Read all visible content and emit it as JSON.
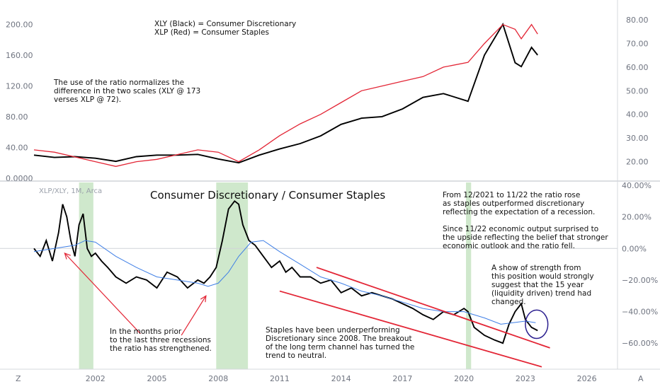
{
  "chart_data": [
    {
      "type": "line",
      "panel": "top",
      "legend": [
        "XLY (Black) = Consumer Discretionary",
        "XLP (Red) = Consumer Staples"
      ],
      "annotation": [
        "The use of the ratio normalizes the",
        "difference in the two scales (XLY @ 173",
        "verses XLP @ 72)."
      ],
      "left_axis": {
        "ticks": [
          "200.00",
          "160.00",
          "120.00",
          "80.00",
          "40.00",
          "0.0000"
        ],
        "ylim": [
          0,
          215
        ]
      },
      "right_axis": {
        "ticks": [
          "80.00",
          "70.00",
          "60.00",
          "50.00",
          "40.00",
          "30.00",
          "20.00"
        ],
        "ylim": [
          13,
          83
        ]
      },
      "series": [
        {
          "name": "XLY (Black) = Consumer Discretionary",
          "axis": "left",
          "color": "#000000",
          "x": [
            1999.0,
            2000.0,
            2001.0,
            2002.0,
            2003.0,
            2004.0,
            2005.0,
            2006.0,
            2007.0,
            2008.0,
            2009.0,
            2010.0,
            2011.0,
            2012.0,
            2013.0,
            2014.0,
            2015.0,
            2016.0,
            2017.0,
            2018.0,
            2019.0,
            2020.2,
            2021.0,
            2021.9,
            2022.5,
            2022.8,
            2023.3,
            2023.6
          ],
          "values": [
            30,
            27,
            28,
            26,
            22,
            28,
            30,
            30,
            31,
            25,
            20,
            30,
            38,
            45,
            55,
            70,
            78,
            80,
            90,
            105,
            110,
            100,
            160,
            200,
            150,
            145,
            170,
            160
          ]
        },
        {
          "name": "XLP (Red) = Consumer Staples",
          "axis": "right",
          "color": "#e32636",
          "x": [
            1999.0,
            2000.0,
            2001.0,
            2002.0,
            2003.0,
            2004.0,
            2005.0,
            2006.0,
            2007.0,
            2008.0,
            2009.0,
            2010.0,
            2011.0,
            2012.0,
            2013.0,
            2014.0,
            2015.0,
            2016.0,
            2017.0,
            2018.0,
            2019.0,
            2020.2,
            2021.0,
            2021.9,
            2022.5,
            2022.8,
            2023.3,
            2023.6
          ],
          "values": [
            25,
            24,
            22,
            20,
            18,
            20,
            21,
            23,
            25,
            24,
            20,
            25,
            31,
            36,
            40,
            45,
            50,
            52,
            54,
            56,
            60,
            62,
            70,
            78,
            76,
            72,
            78,
            74
          ]
        }
      ]
    },
    {
      "type": "line",
      "panel": "bottom",
      "symbol": "XLP/XLY, 1M, Arca",
      "title": "Consumer Discretionary / Consumer Staples",
      "x_ticks": [
        "2002",
        "2005",
        "2008",
        "2011",
        "2014",
        "2017",
        "2020",
        "2023",
        "2026"
      ],
      "xlim": [
        1999.0,
        2027.5
      ],
      "y_ticks": [
        "40.00%",
        "20.00%",
        "0.00%",
        "−20.00%",
        "−40.00%",
        "−60.00%"
      ],
      "ylim": [
        -72,
        40
      ],
      "recession_shading": [
        [
          2001.2,
          2001.9
        ],
        [
          2007.9,
          2009.45
        ],
        [
          2020.1,
          2020.35
        ]
      ],
      "series": [
        {
          "name": "XLP/XLY",
          "color": "#000000",
          "x": [
            1999.0,
            1999.3,
            1999.6,
            1999.9,
            2000.2,
            2000.4,
            2000.6,
            2000.8,
            2001.0,
            2001.2,
            2001.4,
            2001.6,
            2001.8,
            2002.0,
            2002.3,
            2002.6,
            2003.0,
            2003.5,
            2004.0,
            2004.5,
            2005.0,
            2005.5,
            2006.0,
            2006.5,
            2007.0,
            2007.3,
            2007.6,
            2007.9,
            2008.2,
            2008.5,
            2008.8,
            2009.0,
            2009.2,
            2009.5,
            2009.8,
            2010.2,
            2010.6,
            2011.0,
            2011.3,
            2011.6,
            2012.0,
            2012.5,
            2013.0,
            2013.5,
            2014.0,
            2014.5,
            2015.0,
            2015.5,
            2016.0,
            2016.5,
            2017.0,
            2017.5,
            2018.0,
            2018.5,
            2019.0,
            2019.5,
            2020.0,
            2020.2,
            2020.5,
            2021.0,
            2021.5,
            2021.9,
            2022.2,
            2022.5,
            2022.8,
            2023.0,
            2023.3,
            2023.6
          ],
          "values": [
            0,
            -5,
            5,
            -8,
            10,
            28,
            20,
            5,
            -5,
            15,
            22,
            0,
            -5,
            -3,
            -8,
            -12,
            -18,
            -22,
            -18,
            -20,
            -25,
            -15,
            -18,
            -25,
            -20,
            -22,
            -18,
            -12,
            5,
            25,
            30,
            28,
            15,
            5,
            2,
            -5,
            -12,
            -8,
            -15,
            -12,
            -18,
            -18,
            -22,
            -20,
            -28,
            -25,
            -30,
            -28,
            -30,
            -32,
            -35,
            -38,
            -42,
            -45,
            -40,
            -42,
            -38,
            -40,
            -50,
            -55,
            -58,
            -60,
            -48,
            -40,
            -35,
            -45,
            -50,
            -52
          ]
        },
        {
          "name": "moving average",
          "color": "#3f7fe6",
          "x": [
            1999.0,
            2000.0,
            2001.0,
            2001.5,
            2002.0,
            2003.0,
            2004.0,
            2005.0,
            2006.0,
            2007.0,
            2007.5,
            2008.0,
            2008.5,
            2009.0,
            2009.6,
            2010.2,
            2011.0,
            2012.0,
            2013.0,
            2014.0,
            2015.0,
            2016.0,
            2017.0,
            2018.0,
            2019.0,
            2020.0,
            2021.0,
            2021.8,
            2022.4,
            2023.0,
            2023.5
          ],
          "values": [
            -2,
            0,
            2,
            5,
            4,
            -5,
            -12,
            -18,
            -20,
            -22,
            -24,
            -22,
            -15,
            -5,
            4,
            5,
            -2,
            -10,
            -18,
            -22,
            -27,
            -30,
            -34,
            -38,
            -40,
            -40,
            -44,
            -48,
            -47,
            -46,
            -47
          ]
        }
      ],
      "trendlines": [
        {
          "color": "#e32636",
          "x": [
            2012.8,
            2024.2
          ],
          "values": [
            -12,
            -63
          ]
        },
        {
          "color": "#e32636",
          "x": [
            2011.0,
            2023.8
          ],
          "values": [
            -27,
            -75
          ]
        }
      ],
      "annotations": {
        "left": [
          "In the months prior",
          "to the last three recessions",
          "the ratio has strengthened."
        ],
        "middle": [
          "Staples have been underperforming",
          "Discretionary since 2008. The breakout",
          "of the long term channel has turned the",
          "trend to neutral."
        ],
        "top_right": [
          "From 12/2021 to 11/22 the ratio rose",
          "as staples outperformed discretionary",
          "reflecting the expectation of a recession.",
          "",
          "Since 11/22 economic output surprised to",
          "the upside reflecting the belief that stronger",
          "economic outlook and the ratio fell."
        ],
        "strength": [
          "A show of strength from",
          "this position would strongly",
          "suggest that the 15 year",
          "(liquidity driven) trend had",
          "changed."
        ]
      },
      "arrows": [
        {
          "color": "#e32636",
          "from": [
            2004.2,
            -54
          ],
          "to": [
            2000.5,
            -3
          ]
        },
        {
          "color": "#e32636",
          "from": [
            2006.2,
            -55
          ],
          "to": [
            2007.4,
            -30
          ]
        }
      ],
      "circle": {
        "color": "#2b1f8f",
        "center": [
          2023.55,
          -48
        ],
        "radius_units": [
          0.55,
          9
        ]
      }
    }
  ],
  "footer": {
    "left_icon": "Z",
    "right_icon": "A"
  }
}
